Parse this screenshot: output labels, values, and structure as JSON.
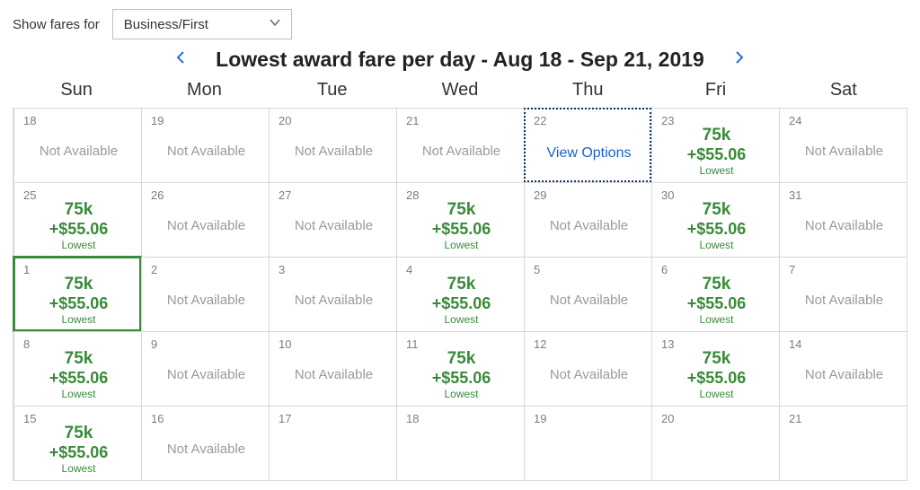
{
  "topbar": {
    "show_fares_label": "Show fares for",
    "fare_class_selected": "Business/First"
  },
  "header": {
    "title": "Lowest award fare per day - Aug 18 - Sep 21, 2019"
  },
  "calendar": {
    "day_names": [
      "Sun",
      "Mon",
      "Tue",
      "Wed",
      "Thu",
      "Fri",
      "Sat"
    ],
    "not_available_text": "Not Available",
    "view_options_text": "View Options",
    "lowest_text": "Lowest",
    "fare_color": "#3b8a3b",
    "link_color": "#1a64c8",
    "border_color": "#d8d8d8",
    "cells": [
      {
        "day": "18",
        "type": "na"
      },
      {
        "day": "19",
        "type": "na"
      },
      {
        "day": "20",
        "type": "na"
      },
      {
        "day": "21",
        "type": "na"
      },
      {
        "day": "22",
        "type": "view",
        "selected": true
      },
      {
        "day": "23",
        "type": "fare",
        "miles": "75k",
        "cash": "+$55.06"
      },
      {
        "day": "24",
        "type": "na"
      },
      {
        "day": "25",
        "type": "fare",
        "miles": "75k",
        "cash": "+$55.06"
      },
      {
        "day": "26",
        "type": "na"
      },
      {
        "day": "27",
        "type": "na"
      },
      {
        "day": "28",
        "type": "fare",
        "miles": "75k",
        "cash": "+$55.06"
      },
      {
        "day": "29",
        "type": "na"
      },
      {
        "day": "30",
        "type": "fare",
        "miles": "75k",
        "cash": "+$55.06"
      },
      {
        "day": "31",
        "type": "na"
      },
      {
        "day": "1",
        "type": "fare",
        "miles": "75k",
        "cash": "+$55.06",
        "highlight": true
      },
      {
        "day": "2",
        "type": "na"
      },
      {
        "day": "3",
        "type": "na"
      },
      {
        "day": "4",
        "type": "fare",
        "miles": "75k",
        "cash": "+$55.06"
      },
      {
        "day": "5",
        "type": "na"
      },
      {
        "day": "6",
        "type": "fare",
        "miles": "75k",
        "cash": "+$55.06"
      },
      {
        "day": "7",
        "type": "na"
      },
      {
        "day": "8",
        "type": "fare",
        "miles": "75k",
        "cash": "+$55.06"
      },
      {
        "day": "9",
        "type": "na"
      },
      {
        "day": "10",
        "type": "na"
      },
      {
        "day": "11",
        "type": "fare",
        "miles": "75k",
        "cash": "+$55.06"
      },
      {
        "day": "12",
        "type": "na"
      },
      {
        "day": "13",
        "type": "fare",
        "miles": "75k",
        "cash": "+$55.06"
      },
      {
        "day": "14",
        "type": "na"
      },
      {
        "day": "15",
        "type": "fare",
        "miles": "75k",
        "cash": "+$55.06"
      },
      {
        "day": "16",
        "type": "na"
      },
      {
        "day": "17",
        "type": "blank"
      },
      {
        "day": "18",
        "type": "blank"
      },
      {
        "day": "19",
        "type": "blank"
      },
      {
        "day": "20",
        "type": "blank"
      },
      {
        "day": "21",
        "type": "blank"
      }
    ]
  }
}
